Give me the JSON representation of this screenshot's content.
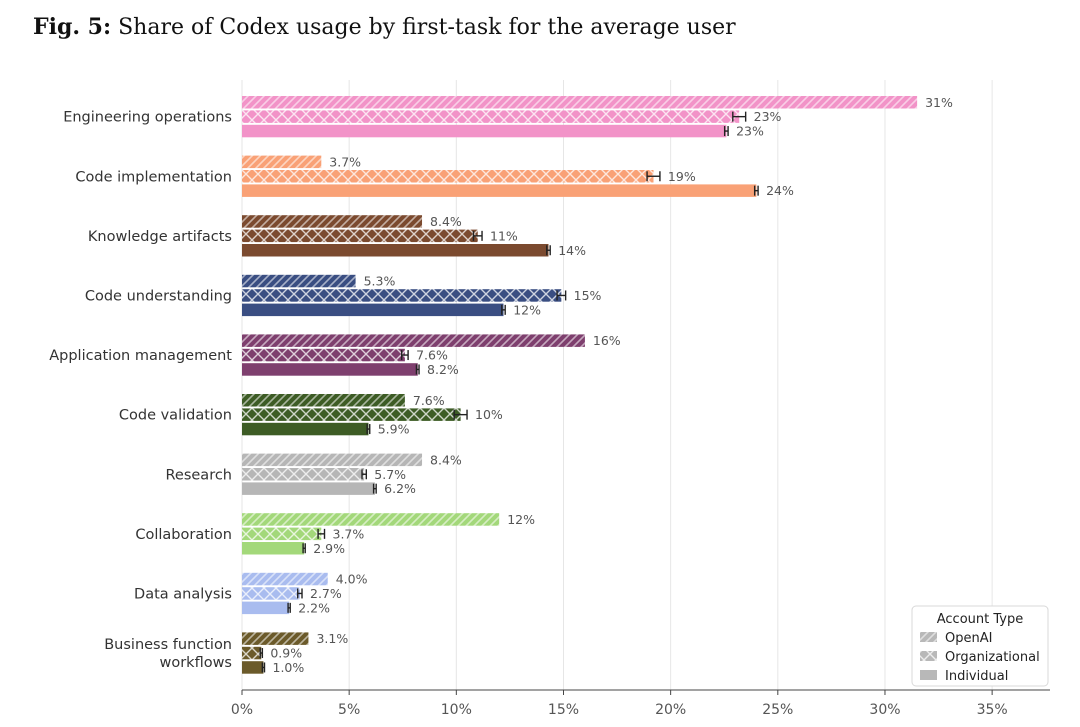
{
  "figure": {
    "label": "Fig. 5:",
    "title": "Share of Codex usage by first-task for the average user"
  },
  "chart_data": {
    "type": "bar",
    "orientation": "horizontal",
    "categories": [
      "Engineering operations",
      "Code implementation",
      "Knowledge artifacts",
      "Code understanding",
      "Application management",
      "Code validation",
      "Research",
      "Collaboration",
      "Data analysis",
      "Business function workflows"
    ],
    "category_lines": [
      [
        "Engineering operations"
      ],
      [
        "Code implementation"
      ],
      [
        "Knowledge artifacts"
      ],
      [
        "Code understanding"
      ],
      [
        "Application management"
      ],
      [
        "Code validation"
      ],
      [
        "Research"
      ],
      [
        "Collaboration"
      ],
      [
        "Data analysis"
      ],
      [
        "Business function",
        "workflows"
      ]
    ],
    "category_colors": [
      "#f293c8",
      "#f9a176",
      "#7b4a2f",
      "#3a4e82",
      "#7e3f6e",
      "#3d5c25",
      "#b6b6b6",
      "#a3d87a",
      "#a9bcef",
      "#6b5a2a"
    ],
    "series": [
      {
        "name": "OpenAI",
        "pattern": "diagonal",
        "values": [
          31.5,
          3.7,
          8.4,
          5.3,
          16.0,
          7.6,
          8.4,
          12.0,
          4.0,
          3.1
        ],
        "labels": [
          "31%",
          "3.7%",
          "8.4%",
          "5.3%",
          "16%",
          "7.6%",
          "8.4%",
          "12%",
          "4.0%",
          "3.1%"
        ],
        "error": [
          0,
          0,
          0,
          0,
          0,
          0,
          0,
          0,
          0,
          0
        ]
      },
      {
        "name": "Organizational",
        "pattern": "crosshatch",
        "values": [
          23.2,
          19.2,
          11.0,
          14.9,
          7.6,
          10.2,
          5.7,
          3.7,
          2.7,
          0.9
        ],
        "labels": [
          "23%",
          "19%",
          "11%",
          "15%",
          "7.6%",
          "10%",
          "5.7%",
          "3.7%",
          "2.7%",
          "0.9%"
        ],
        "error": [
          0.3,
          0.3,
          0.2,
          0.2,
          0.15,
          0.3,
          0.1,
          0.15,
          0.1,
          0.05
        ]
      },
      {
        "name": "Individual",
        "pattern": "solid",
        "values": [
          22.6,
          24.0,
          14.3,
          12.2,
          8.2,
          5.9,
          6.2,
          2.9,
          2.2,
          1.0
        ],
        "labels": [
          "23%",
          "24%",
          "14%",
          "12%",
          "8.2%",
          "5.9%",
          "6.2%",
          "2.9%",
          "2.2%",
          "1.0%"
        ],
        "error": [
          0.08,
          0.08,
          0.08,
          0.08,
          0.06,
          0.06,
          0.06,
          0.05,
          0.05,
          0.05
        ]
      }
    ],
    "x_ticks": [
      0,
      5,
      10,
      15,
      20,
      25,
      30,
      35
    ],
    "x_tick_labels": [
      "0%",
      "5%",
      "10%",
      "15%",
      "20%",
      "25%",
      "30%",
      "35%"
    ],
    "xlim": [
      0,
      37.7
    ],
    "grid": "vertical",
    "legend": {
      "title": "Account Type",
      "position": "bottom-right",
      "entries": [
        "OpenAI",
        "Organizational",
        "Individual"
      ]
    }
  }
}
